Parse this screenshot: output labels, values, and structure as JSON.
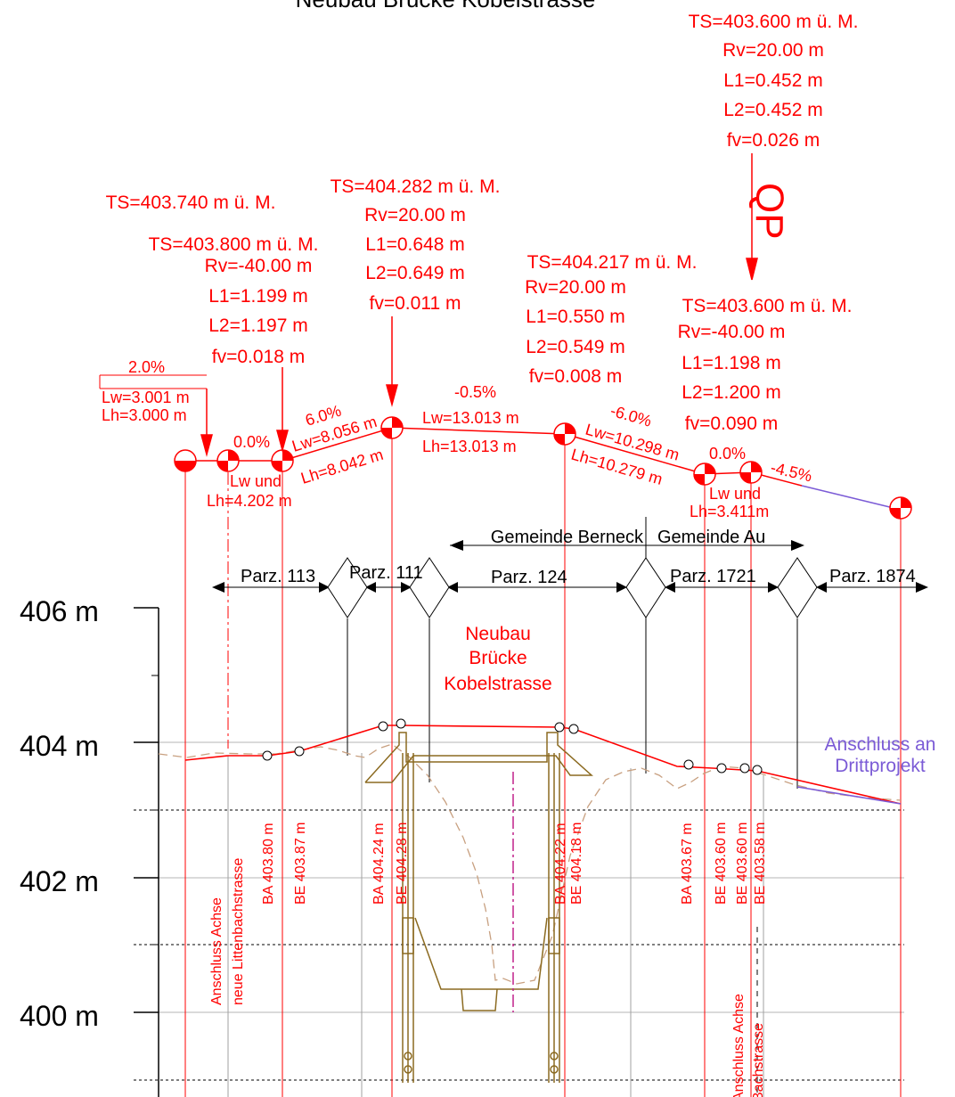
{
  "title": "Neubau Brücke Kobelstrasse",
  "elevation_axis": {
    "labels": [
      "406 m",
      "404 m",
      "402 m",
      "400 m"
    ]
  },
  "vertical_curves": [
    {
      "ts": "TS=403.600 m ü. M.",
      "rv": "Rv=20.00 m",
      "l1": "L1=0.452 m",
      "l2": "L2=0.452 m",
      "fv": "fv=0.026 m"
    },
    {
      "ts": "TS=404.282 m ü. M.",
      "rv": "Rv=20.00 m",
      "l1": "L1=0.648 m",
      "l2": "L2=0.649 m",
      "fv": "fv=0.011 m"
    },
    {
      "ts": "TS=403.800 m ü. M.",
      "rv": "Rv=-40.00 m",
      "l1": "L1=1.199 m",
      "l2": "L2=1.197 m",
      "fv": "fv=0.018 m"
    },
    {
      "ts": "TS=404.217 m ü. M.",
      "rv": "Rv=20.00 m",
      "l1": "L1=0.550 m",
      "l2": "L2=0.549 m",
      "fv": "fv=0.008 m"
    },
    {
      "ts": "TS=403.600 m ü. M.",
      "rv": "Rv=-40.00 m",
      "l1": "L1=1.198 m",
      "l2": "L2=1.200 m",
      "fv": "fv=0.090 m"
    }
  ],
  "ts_start": "TS=403.740 m ü. M.",
  "qp_label": "QP",
  "gradients": [
    {
      "grade": "2.0%",
      "lw": "Lw=3.001 m",
      "lh": "Lh=3.000 m"
    },
    {
      "grade": "0.0%",
      "lw": "Lw und",
      "lh": "Lh=4.202 m"
    },
    {
      "grade": "6.0%",
      "lw": "Lw=8.056 m",
      "lh": "Lh=8.042 m"
    },
    {
      "grade": "-0.5%",
      "lw": "Lw=13.013 m",
      "lh": "Lh=13.013 m"
    },
    {
      "grade": "-6.0%",
      "lw": "Lw=10.298 m",
      "lh": "Lh=10.279 m"
    },
    {
      "grade": "0.0%",
      "lw": "Lw und",
      "lh": "Lh=3.411m"
    },
    {
      "grade": "-4.5%"
    }
  ],
  "municipalities": [
    "Gemeinde Berneck",
    "Gemeinde Au"
  ],
  "parcels": [
    "Parz. 113",
    "Parz. 111",
    "Parz. 124",
    "Parz. 1721",
    "Parz. 1874"
  ],
  "bridge_label": [
    "Neubau",
    "Brücke",
    "Kobelstrasse"
  ],
  "connection_label": [
    "Anschluss an",
    "Drittprojekt"
  ],
  "station_labels": [
    "Anschluss Achse",
    "neue Littenbachstrasse",
    "BA 403.80 m",
    "BE 403.87 m",
    "BA 404.24 m",
    "BE 404.28 m",
    "BA 404.22 m",
    "BE 404.18 m",
    "BA 403.67 m",
    "BE 403.60 m",
    "BE 403.60 m",
    "BE 403.58 m",
    "Anschluss Achse",
    "Bachstrasse"
  ],
  "colors": {
    "design_line": "#ff0000",
    "existing_terrain": "#c8a080",
    "structure": "#8b6a20",
    "connection": "#7b5bd6",
    "axis": "#c0208a"
  }
}
